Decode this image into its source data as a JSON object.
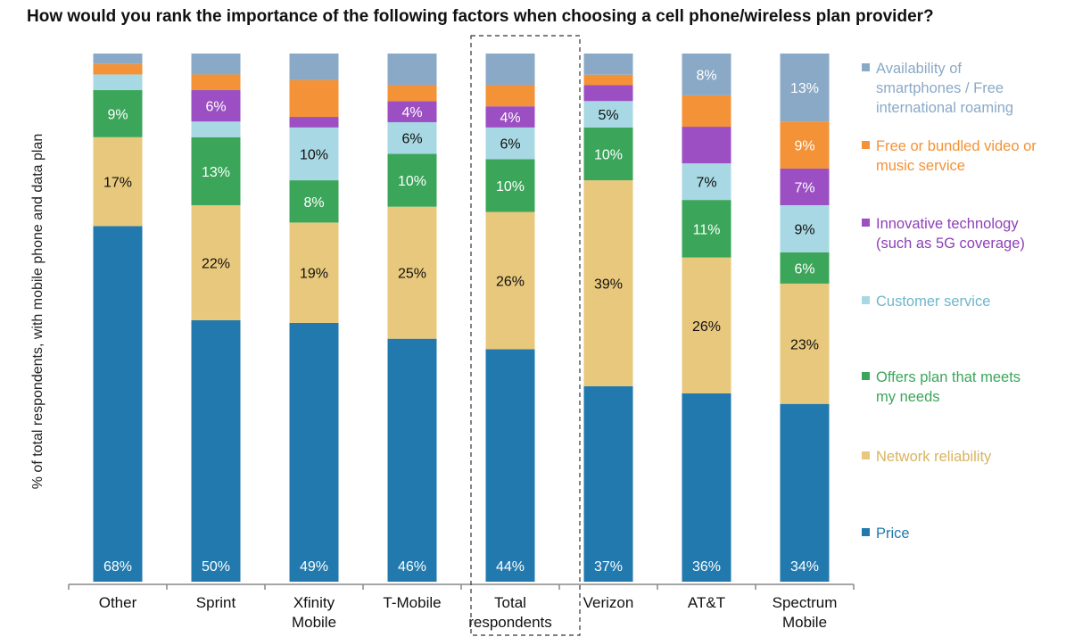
{
  "chart_data": {
    "type": "bar",
    "stacked": true,
    "title": "How would you rank the importance of the following factors when choosing a cell phone/wireless plan provider?",
    "ylabel": "% of total respondents, with mobile phone and data plan",
    "ylim": [
      0,
      100
    ],
    "categories": [
      "Other",
      "Sprint",
      "Xfinity\nMobile",
      "T-Mobile",
      "Total\nrespondents",
      "Verizon",
      "AT&T",
      "Spectrum\nMobile"
    ],
    "highlight_category": "Total\nrespondents",
    "legend_position": "right",
    "series": [
      {
        "name": "Price",
        "color": "#2179ad",
        "values": [
          68,
          50,
          49,
          46,
          44,
          37,
          36,
          34
        ],
        "labels": [
          "68%",
          "50%",
          "49%",
          "46%",
          "44%",
          "37%",
          "36%",
          "34%"
        ],
        "label_color": "#ffffff",
        "label_position": "bottom"
      },
      {
        "name": "Network reliability",
        "color": "#e8c87c",
        "values": [
          17,
          22,
          19,
          25,
          26,
          39,
          26,
          23
        ],
        "labels": [
          "17%",
          "22%",
          "19%",
          "25%",
          "26%",
          "39%",
          "26%",
          "23%"
        ],
        "label_color": "#111111"
      },
      {
        "name": "Offers plan that meets my needs",
        "color": "#3ba65a",
        "values": [
          9,
          13,
          8,
          10,
          10,
          10,
          11,
          6
        ],
        "labels": [
          "9%",
          "13%",
          "8%",
          "10%",
          "10%",
          "10%",
          "11%",
          "6%"
        ],
        "label_color": "#ffffff"
      },
      {
        "name": "Customer service",
        "color": "#a7d8e3",
        "values": [
          3,
          3,
          10,
          6,
          6,
          5,
          7,
          9
        ],
        "labels": [
          "",
          "",
          "10%",
          "6%",
          "6%",
          "5%",
          "7%",
          "9%"
        ],
        "label_color": "#111111"
      },
      {
        "name": "Innovative technology (such as 5G coverage)",
        "color": "#9b4fc2",
        "values": [
          0,
          6,
          2,
          4,
          4,
          3,
          7,
          7
        ],
        "labels": [
          "",
          "6%",
          "",
          "4%",
          "4%",
          "",
          "",
          "7%"
        ],
        "label_color": "#ffffff"
      },
      {
        "name": "Free or bundled video or music service",
        "color": "#f39237",
        "values": [
          2,
          3,
          7,
          3,
          4,
          2,
          6,
          9
        ],
        "labels": [
          "",
          "",
          "",
          "",
          "",
          "",
          "",
          "9%"
        ],
        "label_color": "#ffffff"
      },
      {
        "name": "Availability of smartphones / Free international roaming",
        "color": "#8aa9c7",
        "values": [
          2,
          4,
          5,
          6,
          6,
          4,
          8,
          13
        ],
        "labels": [
          "",
          "",
          "",
          "",
          "",
          "",
          "8%",
          "13%"
        ],
        "label_color": "#ffffff"
      }
    ]
  },
  "legend": [
    {
      "label": "Availability of\nsmartphones / Free\ninternational roaming",
      "color": "#8aa9c7",
      "text_color": "#8aa9c7"
    },
    {
      "label": "Free or bundled video or\nmusic service",
      "color": "#f39237",
      "text_color": "#f39237"
    },
    {
      "label": "Innovative technology\n(such as 5G coverage)",
      "color": "#9b4fc2",
      "text_color": "#8e3fb8"
    },
    {
      "label": "Customer service",
      "color": "#a7d8e3",
      "text_color": "#6fb6c9"
    },
    {
      "label": "Offers plan that meets\nmy needs",
      "color": "#3ba65a",
      "text_color": "#3ba65a"
    },
    {
      "label": "Network reliability",
      "color": "#e8c87c",
      "text_color": "#d9b35f"
    },
    {
      "label": "Price",
      "color": "#2179ad",
      "text_color": "#2179ad"
    }
  ]
}
